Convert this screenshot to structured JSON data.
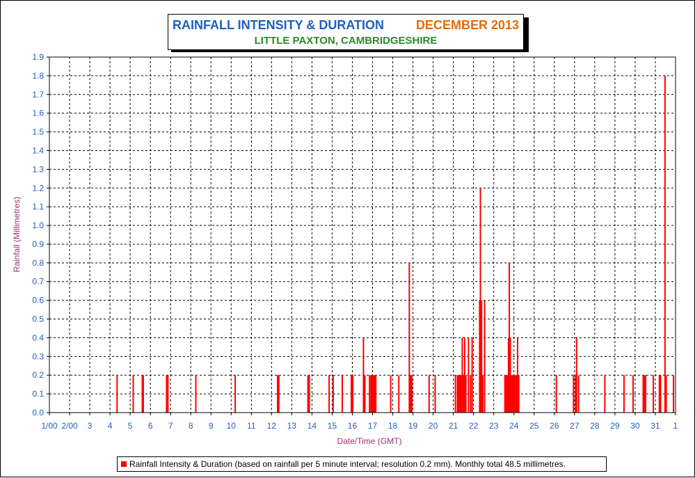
{
  "title": {
    "main": "RAINFALL INTENSITY & DURATION",
    "date": "DECEMBER 2013",
    "subtitle": "LITTLE PAXTON, CAMBRIDGESHIRE"
  },
  "legend": {
    "text": "Rainfall Intensity & Duration (based on rainfall per 5 minute interval; resolution 0.2 mm). Monthly total 48.5 millimetres."
  },
  "colors": {
    "bar": "#ff0000",
    "tick_label": "#1f5fbf",
    "axis_label": "#a0306f",
    "title_main": "#1f5fbf",
    "title_date": "#e46c0a",
    "subtitle": "#2a8a2a"
  },
  "chart_data": {
    "type": "bar",
    "title": "RAINFALL INTENSITY & DURATION",
    "subtitle": "LITTLE PAXTON, CAMBRIDGESHIRE",
    "xlabel": "Date/Time (GMT)",
    "ylabel": "Rainfall (Millimetres)",
    "ylim": [
      0,
      1.9
    ],
    "xlim": [
      1,
      32
    ],
    "grid": true,
    "legend_position": "bottom",
    "y_ticks": [
      "0.0",
      "0.1",
      "0.2",
      "0.3",
      "0.4",
      "0.5",
      "0.6",
      "0.7",
      "0.8",
      "0.9",
      "1.0",
      "1.1",
      "1.2",
      "1.3",
      "1.4",
      "1.5",
      "1.6",
      "1.7",
      "1.8",
      "1.9"
    ],
    "x_ticks": [
      {
        "x": 1,
        "label": "1/00"
      },
      {
        "x": 2,
        "label": "2/00"
      },
      {
        "x": 3,
        "label": "3"
      },
      {
        "x": 4,
        "label": "4"
      },
      {
        "x": 5,
        "label": "5"
      },
      {
        "x": 6,
        "label": "6"
      },
      {
        "x": 7,
        "label": "7"
      },
      {
        "x": 8,
        "label": "8"
      },
      {
        "x": 9,
        "label": "9"
      },
      {
        "x": 10,
        "label": "10"
      },
      {
        "x": 11,
        "label": "11"
      },
      {
        "x": 12,
        "label": "12"
      },
      {
        "x": 13,
        "label": "13"
      },
      {
        "x": 14,
        "label": "14"
      },
      {
        "x": 15,
        "label": "15"
      },
      {
        "x": 16,
        "label": "16"
      },
      {
        "x": 17,
        "label": "17"
      },
      {
        "x": 18,
        "label": "18"
      },
      {
        "x": 19,
        "label": "19"
      },
      {
        "x": 20,
        "label": "20"
      },
      {
        "x": 21,
        "label": "21"
      },
      {
        "x": 22,
        "label": "22"
      },
      {
        "x": 23,
        "label": "23"
      },
      {
        "x": 24,
        "label": "24"
      },
      {
        "x": 25,
        "label": "25"
      },
      {
        "x": 26,
        "label": "26"
      },
      {
        "x": 27,
        "label": "27"
      },
      {
        "x": 28,
        "label": "28"
      },
      {
        "x": 29,
        "label": "29"
      },
      {
        "x": 30,
        "label": "30"
      },
      {
        "x": 31,
        "label": "31"
      },
      {
        "x": 32,
        "label": "1"
      }
    ],
    "series": [
      {
        "name": "Rainfall Intensity & Duration (based on rainfall per 5 minute interval; resolution 0.2 mm). Monthly total 48.5 millimetres.",
        "points": [
          {
            "x": 4.35,
            "y": 0.2
          },
          {
            "x": 5.15,
            "y": 0.2
          },
          {
            "x": 5.6,
            "y": 0.2
          },
          {
            "x": 5.65,
            "y": 0.2
          },
          {
            "x": 6.8,
            "y": 0.2
          },
          {
            "x": 6.87,
            "y": 0.2
          },
          {
            "x": 8.25,
            "y": 0.2
          },
          {
            "x": 10.2,
            "y": 0.2
          },
          {
            "x": 12.3,
            "y": 0.2
          },
          {
            "x": 12.36,
            "y": 0.2
          },
          {
            "x": 13.8,
            "y": 0.2
          },
          {
            "x": 13.87,
            "y": 0.2
          },
          {
            "x": 14.85,
            "y": 0.2
          },
          {
            "x": 15.05,
            "y": 0.2
          },
          {
            "x": 15.5,
            "y": 0.2
          },
          {
            "x": 15.95,
            "y": 0.2
          },
          {
            "x": 16.02,
            "y": 0.2
          },
          {
            "x": 16.55,
            "y": 0.4
          },
          {
            "x": 16.62,
            "y": 0.2
          },
          {
            "x": 16.85,
            "y": 0.2
          },
          {
            "x": 16.92,
            "y": 0.2
          },
          {
            "x": 16.98,
            "y": 0.2
          },
          {
            "x": 17.04,
            "y": 0.2
          },
          {
            "x": 17.1,
            "y": 0.2
          },
          {
            "x": 17.16,
            "y": 0.2
          },
          {
            "x": 17.9,
            "y": 0.2
          },
          {
            "x": 18.3,
            "y": 0.2
          },
          {
            "x": 18.82,
            "y": 0.8
          },
          {
            "x": 18.88,
            "y": 0.2
          },
          {
            "x": 18.94,
            "y": 0.2
          },
          {
            "x": 19.8,
            "y": 0.2
          },
          {
            "x": 20.1,
            "y": 0.2
          },
          {
            "x": 21.1,
            "y": 0.2
          },
          {
            "x": 21.2,
            "y": 0.2
          },
          {
            "x": 21.26,
            "y": 0.2
          },
          {
            "x": 21.32,
            "y": 0.2
          },
          {
            "x": 21.38,
            "y": 0.2
          },
          {
            "x": 21.44,
            "y": 0.4
          },
          {
            "x": 21.5,
            "y": 0.2
          },
          {
            "x": 21.56,
            "y": 0.4
          },
          {
            "x": 21.62,
            "y": 0.2
          },
          {
            "x": 21.75,
            "y": 0.4
          },
          {
            "x": 21.85,
            "y": 0.2
          },
          {
            "x": 21.93,
            "y": 0.4
          },
          {
            "x": 22.3,
            "y": 0.6
          },
          {
            "x": 22.34,
            "y": 1.2
          },
          {
            "x": 22.4,
            "y": 0.6
          },
          {
            "x": 22.46,
            "y": 0.2
          },
          {
            "x": 22.55,
            "y": 0.6
          },
          {
            "x": 23.55,
            "y": 0.2
          },
          {
            "x": 23.61,
            "y": 0.2
          },
          {
            "x": 23.67,
            "y": 0.2
          },
          {
            "x": 23.73,
            "y": 0.4
          },
          {
            "x": 23.77,
            "y": 0.8
          },
          {
            "x": 23.82,
            "y": 0.4
          },
          {
            "x": 23.88,
            "y": 0.2
          },
          {
            "x": 23.94,
            "y": 0.2
          },
          {
            "x": 24.0,
            "y": 0.2
          },
          {
            "x": 24.06,
            "y": 0.2
          },
          {
            "x": 24.12,
            "y": 0.2
          },
          {
            "x": 24.18,
            "y": 0.4
          },
          {
            "x": 24.24,
            "y": 0.2
          },
          {
            "x": 26.1,
            "y": 0.2
          },
          {
            "x": 26.95,
            "y": 0.2
          },
          {
            "x": 27.05,
            "y": 0.2
          },
          {
            "x": 27.1,
            "y": 0.4
          },
          {
            "x": 27.2,
            "y": 0.2
          },
          {
            "x": 28.5,
            "y": 0.2
          },
          {
            "x": 29.45,
            "y": 0.2
          },
          {
            "x": 29.9,
            "y": 0.2
          },
          {
            "x": 30.4,
            "y": 0.2
          },
          {
            "x": 30.46,
            "y": 0.2
          },
          {
            "x": 30.52,
            "y": 0.2
          },
          {
            "x": 30.9,
            "y": 0.2
          },
          {
            "x": 31.2,
            "y": 0.2
          },
          {
            "x": 31.26,
            "y": 0.2
          },
          {
            "x": 31.48,
            "y": 1.8
          },
          {
            "x": 31.54,
            "y": 0.2
          },
          {
            "x": 31.9,
            "y": 0.2
          }
        ]
      }
    ]
  }
}
